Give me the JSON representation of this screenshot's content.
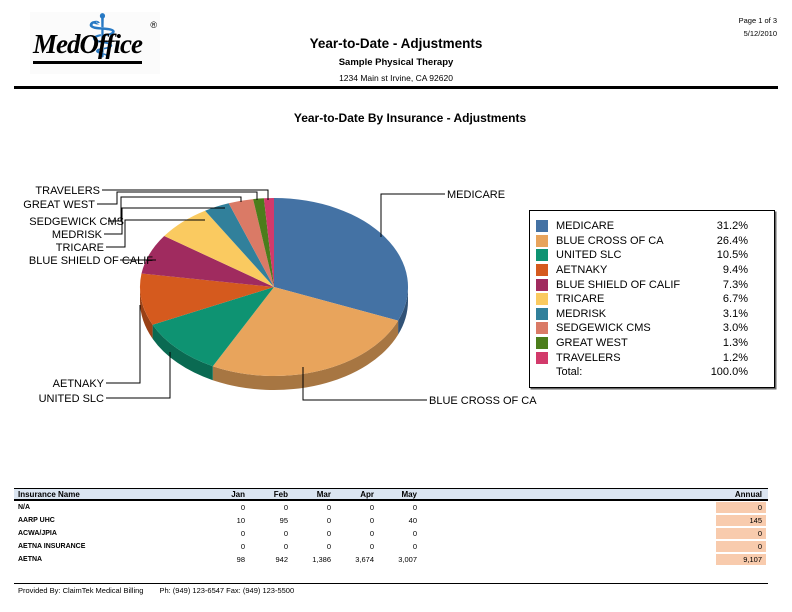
{
  "page": {
    "page_info": "Page 1 of 3",
    "date": "5/12/2010",
    "logo_text": "MedOffice",
    "logo_reg": "®",
    "title": "Year-to-Date - Adjustments",
    "subtitle": "Sample Physical Therapy",
    "address": "1234 Main st Irvine, CA  92620",
    "footer_left": "Provided By: ClaimTek Medical Billing",
    "footer_right": "Ph: (949) 123-6547 Fax: (949) 123-5500"
  },
  "chart_data": {
    "type": "pie",
    "style": "3d",
    "title": "Year-to-Date By Insurance - Adjustments",
    "labels": [
      "MEDICARE",
      "BLUE CROSS OF CA",
      "UNITED SLC",
      "AETNAKY",
      "BLUE SHIELD OF CALIF",
      "TRICARE",
      "MEDRISK",
      "SEDGEWICK CMS",
      "GREAT WEST",
      "TRAVELERS"
    ],
    "values": [
      31.2,
      26.4,
      10.5,
      9.4,
      7.3,
      6.7,
      3.1,
      3.0,
      1.3,
      1.2
    ],
    "colors": [
      "#4472A4",
      "#E8A45C",
      "#0E9372",
      "#D55A1E",
      "#A02B5F",
      "#FACA60",
      "#31809B",
      "#DA7A66",
      "#4C7D1B",
      "#D23A6B"
    ],
    "legend_position": "right",
    "total_label": "Total:",
    "total_value": "100.0%"
  },
  "table": {
    "columns": [
      "Insurance Name",
      "Jan",
      "Feb",
      "Mar",
      "Apr",
      "May",
      "Annual"
    ],
    "rows": [
      {
        "name": "N/A",
        "months": [
          "0",
          "0",
          "0",
          "0",
          "0"
        ],
        "annual": "0"
      },
      {
        "name": "AARP UHC",
        "months": [
          "10",
          "95",
          "0",
          "0",
          "40"
        ],
        "annual": "145"
      },
      {
        "name": "ACWA/JPIA",
        "months": [
          "0",
          "0",
          "0",
          "0",
          "0"
        ],
        "annual": "0"
      },
      {
        "name": "AETNA INSURANCE",
        "months": [
          "0",
          "0",
          "0",
          "0",
          "0"
        ],
        "annual": "0"
      },
      {
        "name": "AETNA",
        "months": [
          "98",
          "942",
          "1,386",
          "3,674",
          "3,007"
        ],
        "annual": "9,107"
      }
    ],
    "annual_highlight_color": "#F8CBAD"
  }
}
